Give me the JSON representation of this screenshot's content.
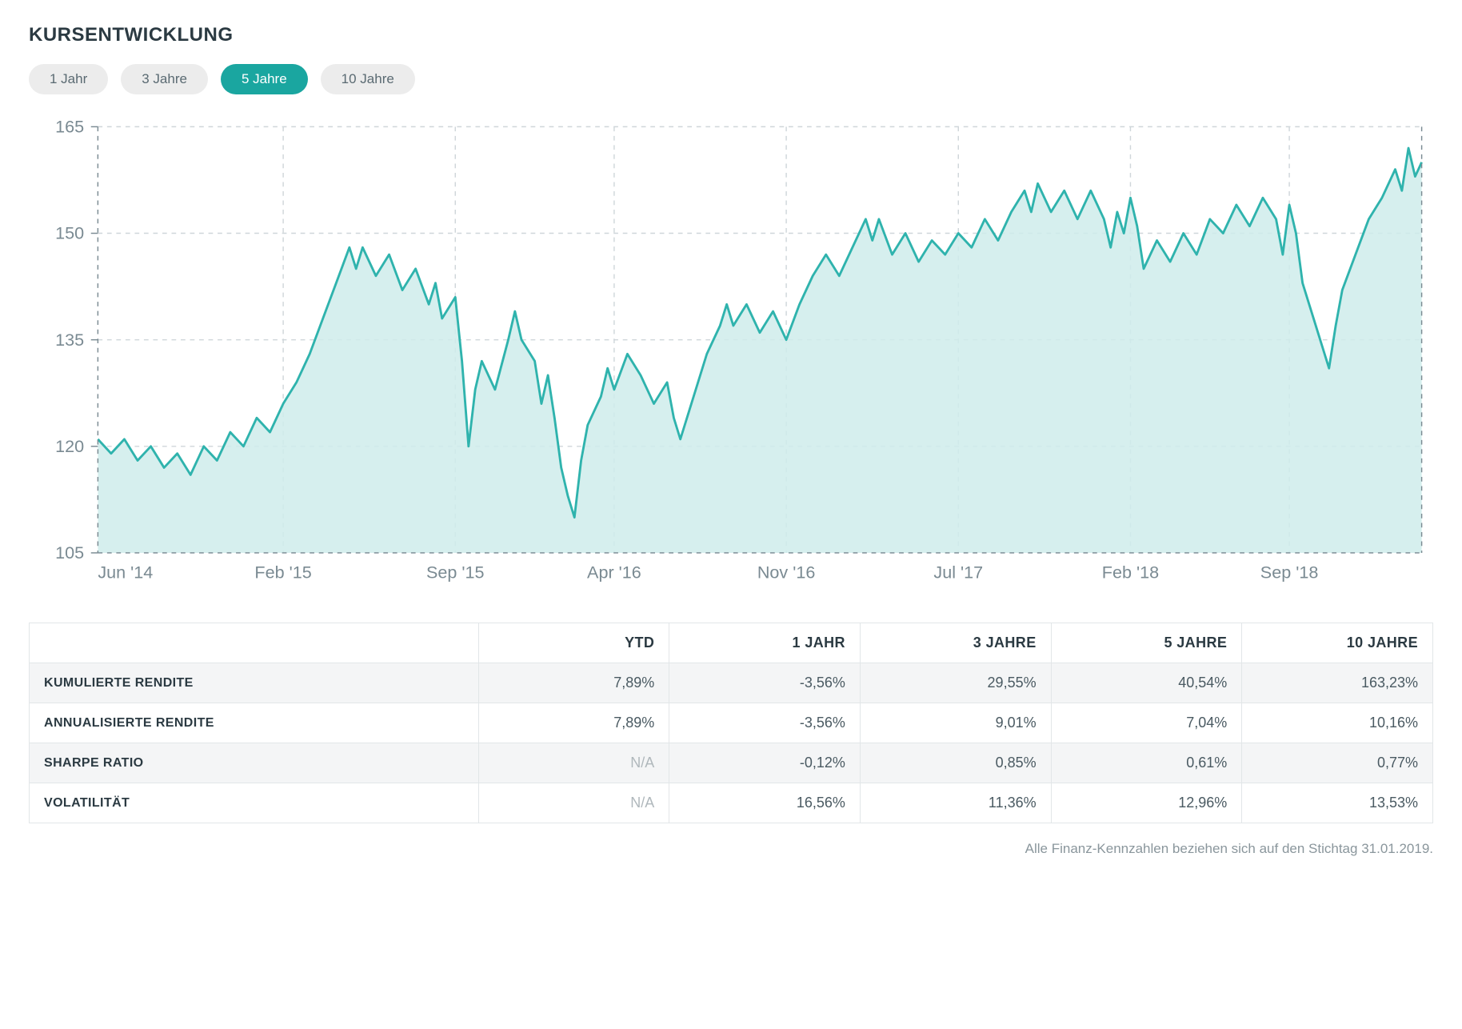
{
  "title": "KURSENTWICKLUNG",
  "period_tabs": {
    "items": [
      {
        "label": "1 Jahr",
        "active": false
      },
      {
        "label": "3 Jahre",
        "active": false
      },
      {
        "label": "5 Jahre",
        "active": true
      },
      {
        "label": "10 Jahre",
        "active": false
      }
    ],
    "active_bg": "#1aa6a0",
    "inactive_bg": "#ececec",
    "active_fg": "#ffffff",
    "inactive_fg": "#5a6a72"
  },
  "chart": {
    "type": "area",
    "line_color": "#2fb3ad",
    "fill_color": "#cfeceb",
    "fill_opacity": 0.85,
    "line_width": 2,
    "background_color": "#ffffff",
    "grid_color": "#cfd6da",
    "grid_dash": "4 4",
    "axis_color": "#7a8a92",
    "label_color": "#7a8a92",
    "label_fontsize": 15,
    "ylim": [
      105,
      165
    ],
    "ytick_step": 15,
    "y_ticks": [
      105,
      120,
      135,
      150,
      165
    ],
    "x_ticks": [
      {
        "t": 0,
        "label": "Jun '14"
      },
      {
        "t": 0.14,
        "label": "Feb '15"
      },
      {
        "t": 0.27,
        "label": "Sep '15"
      },
      {
        "t": 0.39,
        "label": "Apr '16"
      },
      {
        "t": 0.52,
        "label": "Nov '16"
      },
      {
        "t": 0.65,
        "label": "Jul '17"
      },
      {
        "t": 0.78,
        "label": "Feb '18"
      },
      {
        "t": 0.9,
        "label": "Sep '18"
      }
    ],
    "series": [
      {
        "t": 0.0,
        "v": 121
      },
      {
        "t": 0.01,
        "v": 119
      },
      {
        "t": 0.02,
        "v": 121
      },
      {
        "t": 0.03,
        "v": 118
      },
      {
        "t": 0.04,
        "v": 120
      },
      {
        "t": 0.05,
        "v": 117
      },
      {
        "t": 0.06,
        "v": 119
      },
      {
        "t": 0.07,
        "v": 116
      },
      {
        "t": 0.08,
        "v": 120
      },
      {
        "t": 0.09,
        "v": 118
      },
      {
        "t": 0.1,
        "v": 122
      },
      {
        "t": 0.11,
        "v": 120
      },
      {
        "t": 0.12,
        "v": 124
      },
      {
        "t": 0.13,
        "v": 122
      },
      {
        "t": 0.14,
        "v": 126
      },
      {
        "t": 0.15,
        "v": 129
      },
      {
        "t": 0.16,
        "v": 133
      },
      {
        "t": 0.17,
        "v": 138
      },
      {
        "t": 0.18,
        "v": 143
      },
      {
        "t": 0.19,
        "v": 148
      },
      {
        "t": 0.195,
        "v": 145
      },
      {
        "t": 0.2,
        "v": 148
      },
      {
        "t": 0.21,
        "v": 144
      },
      {
        "t": 0.22,
        "v": 147
      },
      {
        "t": 0.23,
        "v": 142
      },
      {
        "t": 0.24,
        "v": 145
      },
      {
        "t": 0.25,
        "v": 140
      },
      {
        "t": 0.255,
        "v": 143
      },
      {
        "t": 0.26,
        "v": 138
      },
      {
        "t": 0.27,
        "v": 141
      },
      {
        "t": 0.275,
        "v": 132
      },
      {
        "t": 0.28,
        "v": 120
      },
      {
        "t": 0.285,
        "v": 128
      },
      {
        "t": 0.29,
        "v": 132
      },
      {
        "t": 0.3,
        "v": 128
      },
      {
        "t": 0.31,
        "v": 135
      },
      {
        "t": 0.315,
        "v": 139
      },
      {
        "t": 0.32,
        "v": 135
      },
      {
        "t": 0.33,
        "v": 132
      },
      {
        "t": 0.335,
        "v": 126
      },
      {
        "t": 0.34,
        "v": 130
      },
      {
        "t": 0.345,
        "v": 124
      },
      {
        "t": 0.35,
        "v": 117
      },
      {
        "t": 0.355,
        "v": 113
      },
      {
        "t": 0.36,
        "v": 110
      },
      {
        "t": 0.365,
        "v": 118
      },
      {
        "t": 0.37,
        "v": 123
      },
      {
        "t": 0.38,
        "v": 127
      },
      {
        "t": 0.385,
        "v": 131
      },
      {
        "t": 0.39,
        "v": 128
      },
      {
        "t": 0.4,
        "v": 133
      },
      {
        "t": 0.41,
        "v": 130
      },
      {
        "t": 0.42,
        "v": 126
      },
      {
        "t": 0.43,
        "v": 129
      },
      {
        "t": 0.435,
        "v": 124
      },
      {
        "t": 0.44,
        "v": 121
      },
      {
        "t": 0.45,
        "v": 127
      },
      {
        "t": 0.46,
        "v": 133
      },
      {
        "t": 0.47,
        "v": 137
      },
      {
        "t": 0.475,
        "v": 140
      },
      {
        "t": 0.48,
        "v": 137
      },
      {
        "t": 0.49,
        "v": 140
      },
      {
        "t": 0.5,
        "v": 136
      },
      {
        "t": 0.51,
        "v": 139
      },
      {
        "t": 0.52,
        "v": 135
      },
      {
        "t": 0.53,
        "v": 140
      },
      {
        "t": 0.54,
        "v": 144
      },
      {
        "t": 0.55,
        "v": 147
      },
      {
        "t": 0.56,
        "v": 144
      },
      {
        "t": 0.57,
        "v": 148
      },
      {
        "t": 0.58,
        "v": 152
      },
      {
        "t": 0.585,
        "v": 149
      },
      {
        "t": 0.59,
        "v": 152
      },
      {
        "t": 0.6,
        "v": 147
      },
      {
        "t": 0.61,
        "v": 150
      },
      {
        "t": 0.62,
        "v": 146
      },
      {
        "t": 0.63,
        "v": 149
      },
      {
        "t": 0.64,
        "v": 147
      },
      {
        "t": 0.65,
        "v": 150
      },
      {
        "t": 0.66,
        "v": 148
      },
      {
        "t": 0.67,
        "v": 152
      },
      {
        "t": 0.68,
        "v": 149
      },
      {
        "t": 0.69,
        "v": 153
      },
      {
        "t": 0.7,
        "v": 156
      },
      {
        "t": 0.705,
        "v": 153
      },
      {
        "t": 0.71,
        "v": 157
      },
      {
        "t": 0.72,
        "v": 153
      },
      {
        "t": 0.73,
        "v": 156
      },
      {
        "t": 0.74,
        "v": 152
      },
      {
        "t": 0.75,
        "v": 156
      },
      {
        "t": 0.76,
        "v": 152
      },
      {
        "t": 0.765,
        "v": 148
      },
      {
        "t": 0.77,
        "v": 153
      },
      {
        "t": 0.775,
        "v": 150
      },
      {
        "t": 0.78,
        "v": 155
      },
      {
        "t": 0.785,
        "v": 151
      },
      {
        "t": 0.79,
        "v": 145
      },
      {
        "t": 0.8,
        "v": 149
      },
      {
        "t": 0.81,
        "v": 146
      },
      {
        "t": 0.82,
        "v": 150
      },
      {
        "t": 0.83,
        "v": 147
      },
      {
        "t": 0.84,
        "v": 152
      },
      {
        "t": 0.85,
        "v": 150
      },
      {
        "t": 0.86,
        "v": 154
      },
      {
        "t": 0.87,
        "v": 151
      },
      {
        "t": 0.88,
        "v": 155
      },
      {
        "t": 0.89,
        "v": 152
      },
      {
        "t": 0.895,
        "v": 147
      },
      {
        "t": 0.9,
        "v": 154
      },
      {
        "t": 0.905,
        "v": 150
      },
      {
        "t": 0.91,
        "v": 143
      },
      {
        "t": 0.92,
        "v": 137
      },
      {
        "t": 0.93,
        "v": 131
      },
      {
        "t": 0.935,
        "v": 137
      },
      {
        "t": 0.94,
        "v": 142
      },
      {
        "t": 0.95,
        "v": 147
      },
      {
        "t": 0.96,
        "v": 152
      },
      {
        "t": 0.97,
        "v": 155
      },
      {
        "t": 0.98,
        "v": 159
      },
      {
        "t": 0.985,
        "v": 156
      },
      {
        "t": 0.99,
        "v": 162
      },
      {
        "t": 0.995,
        "v": 158
      },
      {
        "t": 1.0,
        "v": 160
      }
    ]
  },
  "table": {
    "columns": [
      "",
      "YTD",
      "1 JAHR",
      "3 JAHRE",
      "5 JAHRE",
      "10 JAHRE"
    ],
    "col_widths_pct": [
      32,
      13.6,
      13.6,
      13.6,
      13.6,
      13.6
    ],
    "rows": [
      {
        "label": "KUMULIERTE RENDITE",
        "cells": [
          "7,89%",
          "-3,56%",
          "29,55%",
          "40,54%",
          "163,23%"
        ]
      },
      {
        "label": "ANNUALISIERTE RENDITE",
        "cells": [
          "7,89%",
          "-3,56%",
          "9,01%",
          "7,04%",
          "10,16%"
        ]
      },
      {
        "label": "SHARPE RATIO",
        "cells": [
          "N/A",
          "-0,12%",
          "0,85%",
          "0,61%",
          "0,77%"
        ]
      },
      {
        "label": "VOLATILITÄT",
        "cells": [
          "N/A",
          "16,56%",
          "11,36%",
          "12,96%",
          "13,53%"
        ]
      }
    ],
    "na_color": "#b0b8bc",
    "stripe_bg": "#f4f5f6",
    "border_color": "#e2e6e8"
  },
  "footnote": "Alle Finanz-Kennzahlen beziehen sich auf den Stichtag 31.01.2019."
}
